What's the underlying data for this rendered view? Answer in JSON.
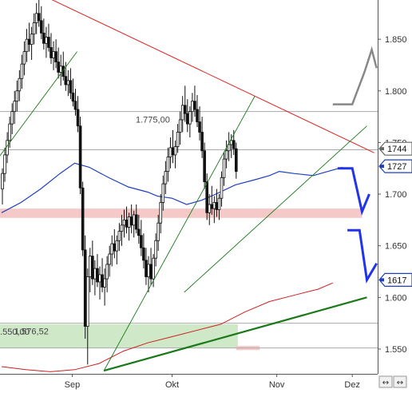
{
  "chart_data": {
    "type": "candlestick",
    "title": "",
    "xlabel": "",
    "ylabel": "",
    "ylim": [
      1526,
      1888
    ],
    "grid": false,
    "y_ticks": [
      {
        "value": 1550,
        "label": "1.550"
      },
      {
        "value": 1600,
        "label": "1.600"
      },
      {
        "value": 1650,
        "label": "1.650"
      },
      {
        "value": 1700,
        "label": "1.700"
      },
      {
        "value": 1750,
        "label": "1.750"
      },
      {
        "value": 1800,
        "label": "1.800"
      },
      {
        "value": 1850,
        "label": "1.850"
      }
    ],
    "x_ticks": [
      {
        "index": 29,
        "label": "Sep"
      },
      {
        "index": 70,
        "label": "Okt"
      },
      {
        "index": 113,
        "label": "Nov"
      },
      {
        "index": 144,
        "label": "Dez"
      }
    ],
    "n_slots": 155,
    "price_tags": [
      {
        "value": 1744,
        "label": "1744",
        "color": "#666666"
      },
      {
        "value": 1727,
        "label": "1727",
        "color": "#1f3fbf"
      },
      {
        "value": 1617,
        "label": "1617",
        "color": "#1f3fbf"
      }
    ],
    "horizontal_levels": [
      {
        "value": 1780,
        "label": "1.775,00",
        "color": "#aaaaaa"
      },
      {
        "value": 1743,
        "label": "",
        "color": "#aaaaaa"
      },
      {
        "value": 1575,
        "label": "1.576,52",
        "color": "#aaaaaa"
      },
      {
        "value": 1551,
        "label": "",
        "color": "#aaaaaa"
      }
    ],
    "zones": [
      {
        "label": "",
        "y_from": 1677,
        "y_to": 1686,
        "x_from": 0,
        "x_to": 148,
        "color": "#f6c9c9"
      },
      {
        "label": "1.550,00",
        "y_from": 1551,
        "y_to": 1574,
        "x_from": 0,
        "x_to": 97,
        "color": "#cfe8c8"
      },
      {
        "label": "",
        "y_from": 1549,
        "y_to": 1553,
        "x_from": 97,
        "x_to": 106,
        "color": "#f6c9c9"
      }
    ],
    "candles": [
      [
        1705,
        1725,
        1690,
        1720
      ],
      [
        1720,
        1745,
        1712,
        1738
      ],
      [
        1738,
        1760,
        1730,
        1752
      ],
      [
        1752,
        1775,
        1745,
        1768
      ],
      [
        1768,
        1788,
        1758,
        1780
      ],
      [
        1780,
        1800,
        1768,
        1790
      ],
      [
        1790,
        1810,
        1780,
        1800
      ],
      [
        1800,
        1820,
        1790,
        1812
      ],
      [
        1812,
        1835,
        1802,
        1826
      ],
      [
        1826,
        1848,
        1815,
        1838
      ],
      [
        1838,
        1860,
        1828,
        1850
      ],
      [
        1850,
        1866,
        1838,
        1845
      ],
      [
        1845,
        1862,
        1830,
        1855
      ],
      [
        1855,
        1875,
        1845,
        1866
      ],
      [
        1866,
        1885,
        1855,
        1875
      ],
      [
        1875,
        1888,
        1862,
        1868
      ],
      [
        1868,
        1882,
        1850,
        1856
      ],
      [
        1856,
        1870,
        1840,
        1846
      ],
      [
        1846,
        1862,
        1832,
        1852
      ],
      [
        1852,
        1865,
        1838,
        1842
      ],
      [
        1842,
        1856,
        1826,
        1832
      ],
      [
        1832,
        1848,
        1820,
        1838
      ],
      [
        1838,
        1850,
        1822,
        1828
      ],
      [
        1828,
        1842,
        1812,
        1818
      ],
      [
        1818,
        1835,
        1805,
        1824
      ],
      [
        1824,
        1838,
        1810,
        1814
      ],
      [
        1814,
        1828,
        1800,
        1806
      ],
      [
        1806,
        1820,
        1795,
        1810
      ],
      [
        1810,
        1822,
        1792,
        1798
      ],
      [
        1798,
        1812,
        1785,
        1790
      ],
      [
        1790,
        1802,
        1776,
        1782
      ],
      [
        1782,
        1795,
        1760,
        1766
      ],
      [
        1766,
        1775,
        1700,
        1706
      ],
      [
        1706,
        1712,
        1640,
        1646
      ],
      [
        1646,
        1660,
        1560,
        1572
      ],
      [
        1572,
        1628,
        1535,
        1620
      ],
      [
        1620,
        1648,
        1605,
        1640
      ],
      [
        1640,
        1655,
        1612,
        1618
      ],
      [
        1618,
        1636,
        1602,
        1628
      ],
      [
        1628,
        1642,
        1610,
        1615
      ],
      [
        1615,
        1630,
        1598,
        1622
      ],
      [
        1622,
        1638,
        1605,
        1610
      ],
      [
        1610,
        1628,
        1592,
        1618
      ],
      [
        1618,
        1640,
        1605,
        1632
      ],
      [
        1632,
        1650,
        1620,
        1642
      ],
      [
        1642,
        1660,
        1630,
        1652
      ],
      [
        1652,
        1666,
        1638,
        1645
      ],
      [
        1645,
        1660,
        1632,
        1655
      ],
      [
        1655,
        1672,
        1645,
        1664
      ],
      [
        1664,
        1680,
        1650,
        1670
      ],
      [
        1670,
        1685,
        1658,
        1675
      ],
      [
        1675,
        1688,
        1662,
        1668
      ],
      [
        1668,
        1682,
        1655,
        1678
      ],
      [
        1678,
        1690,
        1662,
        1670
      ],
      [
        1670,
        1684,
        1658,
        1680
      ],
      [
        1680,
        1690,
        1662,
        1666
      ],
      [
        1666,
        1680,
        1652,
        1660
      ],
      [
        1660,
        1675,
        1640,
        1648
      ],
      [
        1648,
        1662,
        1628,
        1636
      ],
      [
        1636,
        1648,
        1612,
        1620
      ],
      [
        1620,
        1640,
        1605,
        1632
      ],
      [
        1632,
        1648,
        1612,
        1618
      ],
      [
        1618,
        1642,
        1610,
        1638
      ],
      [
        1638,
        1662,
        1630,
        1655
      ],
      [
        1655,
        1680,
        1645,
        1672
      ],
      [
        1672,
        1700,
        1662,
        1692
      ],
      [
        1692,
        1718,
        1684,
        1710
      ],
      [
        1710,
        1732,
        1700,
        1722
      ],
      [
        1722,
        1745,
        1712,
        1736
      ],
      [
        1736,
        1755,
        1725,
        1745
      ],
      [
        1745,
        1762,
        1730,
        1738
      ],
      [
        1738,
        1752,
        1725,
        1746
      ],
      [
        1746,
        1768,
        1740,
        1760
      ],
      [
        1760,
        1780,
        1748,
        1772
      ],
      [
        1772,
        1795,
        1760,
        1786
      ],
      [
        1786,
        1805,
        1770,
        1778
      ],
      [
        1778,
        1792,
        1760,
        1768
      ],
      [
        1768,
        1785,
        1755,
        1780
      ],
      [
        1780,
        1798,
        1770,
        1790
      ],
      [
        1790,
        1805,
        1775,
        1782
      ],
      [
        1782,
        1796,
        1765,
        1770
      ],
      [
        1770,
        1785,
        1752,
        1760
      ],
      [
        1760,
        1775,
        1735,
        1742
      ],
      [
        1742,
        1750,
        1705,
        1712
      ],
      [
        1712,
        1720,
        1675,
        1682
      ],
      [
        1682,
        1700,
        1670,
        1690
      ],
      [
        1690,
        1708,
        1680,
        1686
      ],
      [
        1686,
        1698,
        1672,
        1692
      ],
      [
        1692,
        1705,
        1678,
        1685
      ],
      [
        1685,
        1700,
        1675,
        1696
      ],
      [
        1696,
        1722,
        1688,
        1716
      ],
      [
        1716,
        1740,
        1708,
        1734
      ],
      [
        1734,
        1752,
        1725,
        1742
      ],
      [
        1742,
        1760,
        1732,
        1748
      ],
      [
        1748,
        1758,
        1735,
        1752
      ],
      [
        1752,
        1762,
        1738,
        1744
      ],
      [
        1744,
        1750,
        1715,
        1722
      ]
    ],
    "overlays": [
      {
        "name": "",
        "color": "#1f3fbf",
        "width": 1.2,
        "points": [
          [
            0,
            1682
          ],
          [
            8,
            1692
          ],
          [
            16,
            1705
          ],
          [
            24,
            1720
          ],
          [
            30,
            1730
          ],
          [
            36,
            1726
          ],
          [
            44,
            1716
          ],
          [
            52,
            1707
          ],
          [
            60,
            1702
          ],
          [
            64,
            1698
          ],
          [
            70,
            1696
          ],
          [
            76,
            1690
          ],
          [
            82,
            1694
          ],
          [
            88,
            1700
          ],
          [
            96,
            1709
          ],
          [
            104,
            1714
          ],
          [
            110,
            1718
          ],
          [
            114,
            1722
          ],
          [
            120,
            1720
          ],
          [
            128,
            1718
          ],
          [
            134,
            1722
          ],
          [
            140,
            1726
          ]
        ]
      },
      {
        "name": "",
        "color": "#cc1f1f",
        "width": 1.0,
        "points": [
          [
            0,
            1533
          ],
          [
            10,
            1530
          ],
          [
            20,
            1528
          ],
          [
            30,
            1530
          ],
          [
            40,
            1536
          ],
          [
            50,
            1548
          ],
          [
            60,
            1556
          ],
          [
            70,
            1562
          ],
          [
            80,
            1568
          ],
          [
            90,
            1574
          ],
          [
            100,
            1586
          ],
          [
            110,
            1596
          ],
          [
            120,
            1602
          ],
          [
            130,
            1608
          ],
          [
            136,
            1614
          ]
        ]
      }
    ],
    "trendlines": [
      {
        "color": "#e02020",
        "width": 1.0,
        "from": [
          12,
          1898
        ],
        "to": [
          153,
          1740
        ]
      },
      {
        "color": "#1a7a1a",
        "width": 0.9,
        "from": [
          -2,
          1733
        ],
        "to": [
          31,
          1838
        ]
      },
      {
        "color": "#1a7a1a",
        "width": 0.9,
        "from": [
          42,
          1529
        ],
        "to": [
          104,
          1795
        ]
      },
      {
        "color": "#1a7a1a",
        "width": 0.9,
        "from": [
          75,
          1605
        ],
        "to": [
          150,
          1766
        ]
      },
      {
        "color": "#1a7a1a",
        "width": 2.2,
        "from": [
          42,
          1529
        ],
        "to": [
          150,
          1600
        ]
      }
    ],
    "projections": [
      {
        "color": "#2233ee",
        "width": 3,
        "points": [
          [
            138,
            1725
          ],
          [
            144,
            1725
          ],
          [
            148,
            1683
          ],
          [
            151,
            1700
          ]
        ]
      },
      {
        "color": "#2233ee",
        "width": 3,
        "points": [
          [
            142,
            1665
          ],
          [
            147,
            1665
          ],
          [
            150,
            1617
          ],
          [
            154,
            1633
          ]
        ]
      },
      {
        "color": "#888888",
        "width": 2.5,
        "points": [
          [
            136,
            1787
          ],
          [
            144,
            1787
          ],
          [
            149,
            1818
          ],
          [
            152,
            1840
          ],
          [
            154,
            1822
          ]
        ]
      }
    ],
    "scroll_controls": [
      "↔",
      "↔"
    ]
  }
}
